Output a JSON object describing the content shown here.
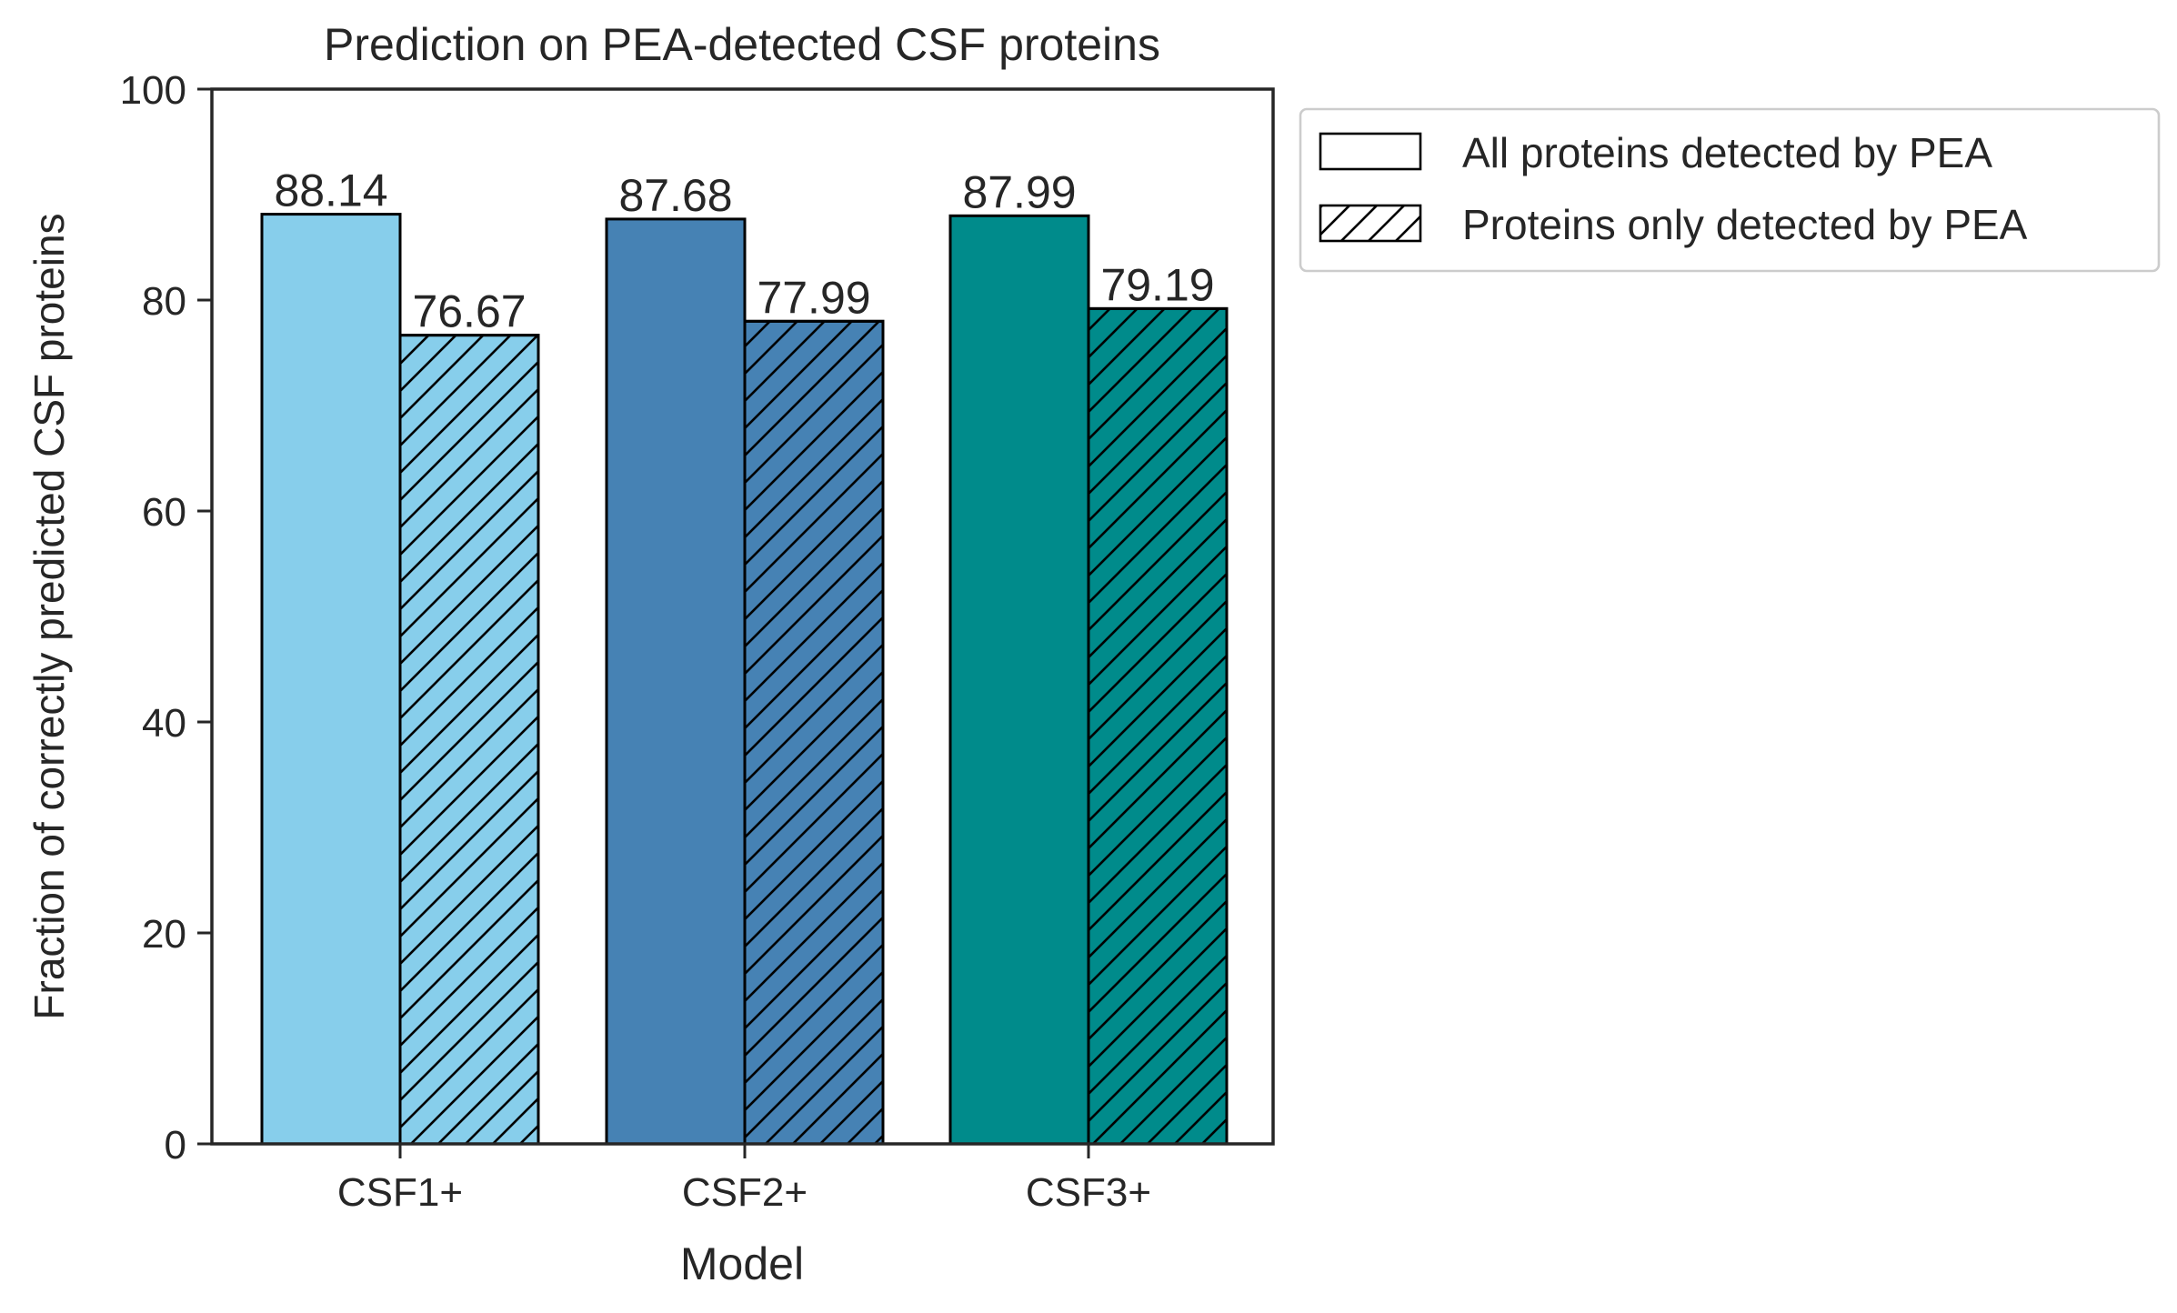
{
  "chart_data": {
    "type": "bar",
    "title": "Prediction on PEA-detected CSF proteins",
    "xlabel": "Model",
    "ylabel": "Fraction of correctly predicted CSF proteins",
    "ylim": [
      0,
      100
    ],
    "yticks": [
      "0",
      "20",
      "40",
      "60",
      "80",
      "100"
    ],
    "categories": [
      "CSF1+",
      "CSF2+",
      "CSF3+"
    ],
    "category_colors": [
      "#87CEEB",
      "#4682B4",
      "#008B8B"
    ],
    "series": [
      {
        "name": "All proteins detected by PEA",
        "hatch": false,
        "values": [
          88.14,
          87.68,
          87.99
        ],
        "labels": [
          "88.14",
          "87.68",
          "87.99"
        ]
      },
      {
        "name": "Proteins only detected by PEA",
        "hatch": true,
        "values": [
          76.67,
          77.99,
          79.19
        ],
        "labels": [
          "76.67",
          "77.99",
          "79.19"
        ]
      }
    ],
    "grid": false,
    "legend_position": "outside-upper-right"
  }
}
